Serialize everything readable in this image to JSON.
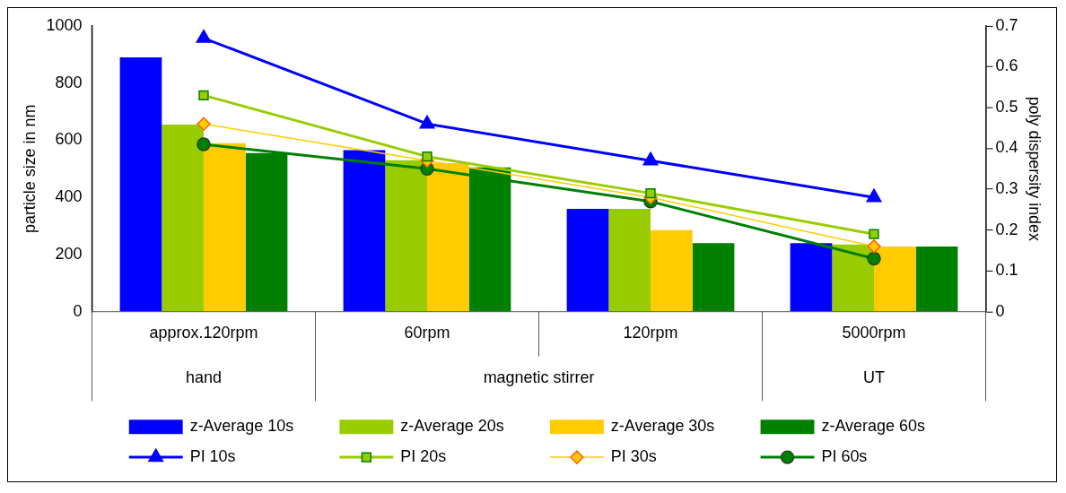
{
  "chart_data": {
    "type": "bar",
    "categories": [
      "approx.120rpm",
      "60rpm",
      "120rpm",
      "5000rpm"
    ],
    "ylabel": "particle size in nm",
    "y2label": "poly dispersity index",
    "ylim": [
      0,
      1000
    ],
    "yticks": [
      0,
      200,
      400,
      600,
      800,
      1000
    ],
    "y2lim": [
      0,
      0.7
    ],
    "y2ticks": [
      0,
      0.1,
      0.2,
      0.3,
      0.4,
      0.5,
      0.6,
      0.7
    ],
    "grid": false,
    "legend": "bottom",
    "annotations": [
      "hand",
      "magnetic stirrer",
      "UT"
    ],
    "series": [
      {
        "name": "z-Average 10s",
        "color": "#0000ff",
        "values": [
          890,
          565,
          360,
          240
        ]
      },
      {
        "name": "z-Average 20s",
        "color": "#99cc00",
        "values": [
          655,
          530,
          360,
          235
        ]
      },
      {
        "name": "z-Average 30s",
        "color": "#ffcc00",
        "values": [
          590,
          520,
          285,
          228
        ]
      },
      {
        "name": "z-Average 60s",
        "color": "#008000",
        "values": [
          555,
          505,
          240,
          228
        ]
      },
      {
        "name": "PI 10s",
        "type": "line",
        "axis": "y2",
        "marker": "triangle",
        "color": "#0000ff",
        "values": [
          0.67,
          0.46,
          0.37,
          0.28
        ]
      },
      {
        "name": "PI 20s",
        "type": "line",
        "axis": "y2",
        "marker": "square",
        "color": "#99cc00",
        "values": [
          0.53,
          0.38,
          0.29,
          0.19
        ]
      },
      {
        "name": "PI 30s",
        "type": "line",
        "axis": "y2",
        "marker": "diamond",
        "color": "#ffcc00",
        "values": [
          0.46,
          0.37,
          0.28,
          0.16
        ]
      },
      {
        "name": "PI 60s",
        "type": "line",
        "axis": "y2",
        "marker": "circle",
        "color": "#008000",
        "values": [
          0.41,
          0.35,
          0.27,
          0.13
        ]
      }
    ]
  }
}
